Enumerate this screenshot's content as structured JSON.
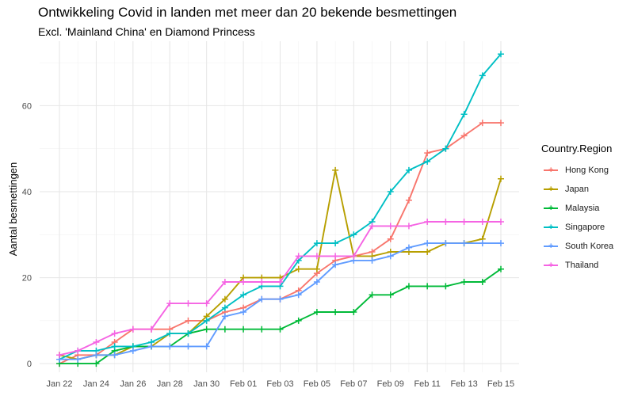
{
  "chart_data": {
    "type": "line",
    "title": "Ontwikkeling Covid in landen met meer dan 20 bekende besmettingen",
    "subtitle": "Excl. 'Mainland China' en Diamond Princess",
    "xlabel": "",
    "ylabel": "Aantal besmettingen",
    "x": [
      "Jan 22",
      "Jan 23",
      "Jan 24",
      "Jan 25",
      "Jan 26",
      "Jan 27",
      "Jan 28",
      "Jan 29",
      "Jan 30",
      "Jan 31",
      "Feb 01",
      "Feb 02",
      "Feb 03",
      "Feb 04",
      "Feb 05",
      "Feb 06",
      "Feb 07",
      "Feb 08",
      "Feb 09",
      "Feb 10",
      "Feb 11",
      "Feb 12",
      "Feb 13",
      "Feb 14",
      "Feb 15"
    ],
    "x_tick_labels": [
      "Jan 22",
      "Jan 24",
      "Jan 26",
      "Jan 28",
      "Jan 30",
      "Feb 01",
      "Feb 03",
      "Feb 05",
      "Feb 07",
      "Feb 09",
      "Feb 11",
      "Feb 13",
      "Feb 15"
    ],
    "y_ticks": [
      0,
      20,
      40,
      60
    ],
    "ylim": [
      -2,
      75
    ],
    "grid": true,
    "legend_position": "right",
    "legend_title": "Country.Region",
    "series": [
      {
        "name": "Hong Kong",
        "color": "#F8766D",
        "values": [
          0,
          2,
          2,
          5,
          8,
          8,
          8,
          10,
          10,
          12,
          13,
          15,
          15,
          17,
          21,
          24,
          25,
          26,
          29,
          38,
          49,
          50,
          53,
          56,
          56
        ]
      },
      {
        "name": "Japan",
        "color": "#B79F00",
        "values": [
          2,
          1,
          2,
          2,
          4,
          4,
          7,
          7,
          11,
          15,
          20,
          20,
          20,
          22,
          22,
          45,
          25,
          25,
          26,
          26,
          26,
          28,
          28,
          29,
          43
        ]
      },
      {
        "name": "Malaysia",
        "color": "#00BA38",
        "values": [
          0,
          0,
          0,
          3,
          4,
          4,
          4,
          7,
          8,
          8,
          8,
          8,
          8,
          10,
          12,
          12,
          12,
          16,
          16,
          18,
          18,
          18,
          19,
          19,
          22
        ]
      },
      {
        "name": "Singapore",
        "color": "#00BFC4",
        "values": [
          1,
          3,
          3,
          4,
          4,
          5,
          7,
          7,
          10,
          13,
          16,
          18,
          18,
          24,
          28,
          28,
          30,
          33,
          40,
          45,
          47,
          50,
          58,
          67,
          72
        ]
      },
      {
        "name": "South Korea",
        "color": "#619CFF",
        "values": [
          1,
          1,
          2,
          2,
          3,
          4,
          4,
          4,
          4,
          11,
          12,
          15,
          15,
          16,
          19,
          23,
          24,
          24,
          25,
          27,
          28,
          28,
          28,
          28,
          28
        ]
      },
      {
        "name": "Thailand",
        "color": "#F564E3",
        "values": [
          2,
          3,
          5,
          7,
          8,
          8,
          14,
          14,
          14,
          19,
          19,
          19,
          19,
          25,
          25,
          25,
          25,
          32,
          32,
          32,
          33,
          33,
          33,
          33,
          33
        ]
      }
    ]
  }
}
